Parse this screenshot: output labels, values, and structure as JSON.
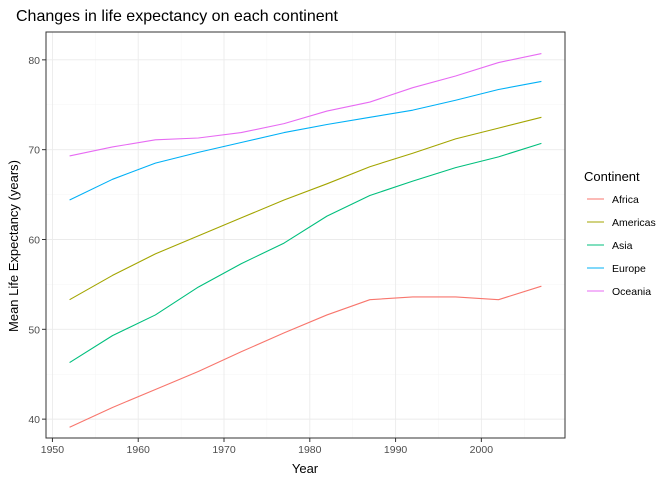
{
  "chart_data": {
    "type": "line",
    "title": "Changes in life expectancy on each continent",
    "xlabel": "Year",
    "ylabel": "Mean Life Expectancy (years)",
    "xlim": [
      1949.25,
      2009.75
    ],
    "ylim": [
      37.9,
      83.1
    ],
    "xticks": [
      1950,
      1960,
      1970,
      1980,
      1990,
      2000
    ],
    "yticks": [
      40,
      50,
      60,
      70,
      80
    ],
    "grid": true,
    "legend": {
      "title": "Continent",
      "position": "right"
    },
    "x": [
      1952,
      1957,
      1962,
      1967,
      1972,
      1977,
      1982,
      1987,
      1992,
      1997,
      2002,
      2007
    ],
    "series": [
      {
        "name": "Africa",
        "color": "#F8766D",
        "values": [
          39.1,
          41.3,
          43.3,
          45.3,
          47.5,
          49.6,
          51.6,
          53.3,
          53.6,
          53.6,
          53.3,
          54.8
        ]
      },
      {
        "name": "Americas",
        "color": "#A3A500",
        "values": [
          53.3,
          56.0,
          58.4,
          60.4,
          62.4,
          64.4,
          66.2,
          68.1,
          69.6,
          71.2,
          72.4,
          73.6
        ]
      },
      {
        "name": "Asia",
        "color": "#00BF7D",
        "values": [
          46.3,
          49.3,
          51.6,
          54.7,
          57.3,
          59.6,
          62.6,
          64.9,
          66.5,
          68.0,
          69.2,
          70.7
        ]
      },
      {
        "name": "Europe",
        "color": "#00B0F6",
        "values": [
          64.4,
          66.7,
          68.5,
          69.7,
          70.8,
          71.9,
          72.8,
          73.6,
          74.4,
          75.5,
          76.7,
          77.6
        ]
      },
      {
        "name": "Oceania",
        "color": "#E76BF3",
        "values": [
          69.3,
          70.3,
          71.1,
          71.3,
          71.9,
          72.9,
          74.3,
          75.3,
          76.9,
          78.2,
          79.7,
          80.7
        ]
      }
    ]
  }
}
